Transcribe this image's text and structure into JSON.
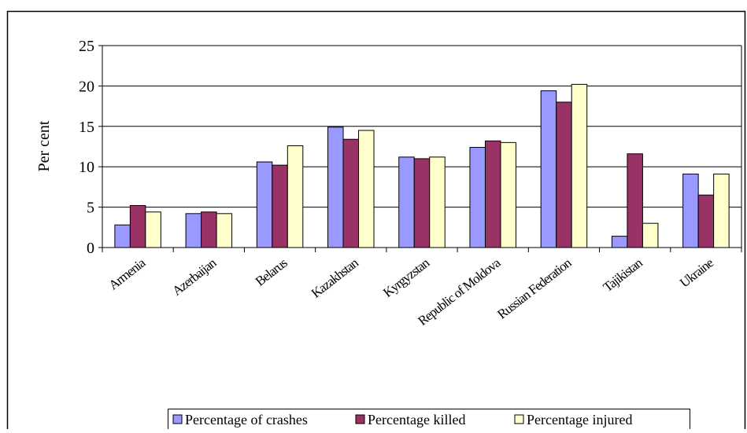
{
  "chart_data": {
    "type": "bar",
    "y_label": "Per cent",
    "categories": [
      "Armenia",
      "Azerbaijan",
      "Belarus",
      "Kazakhstan",
      "Kyrgyzstan",
      "Republic of Moldova",
      "Russian Federation",
      "Tajikistan",
      "Ukraine"
    ],
    "series": [
      {
        "name": "Percentage of crashes",
        "color": "#9999ff",
        "values": [
          2.8,
          4.2,
          10.6,
          14.9,
          11.2,
          12.4,
          19.4,
          1.4,
          9.1
        ]
      },
      {
        "name": "Percentage killed",
        "color": "#993366",
        "values": [
          5.2,
          4.4,
          10.2,
          13.4,
          11.0,
          13.2,
          18.0,
          11.6,
          6.5
        ]
      },
      {
        "name": "Percentage injured",
        "color": "#ffffcc",
        "values": [
          4.4,
          4.2,
          12.6,
          14.5,
          11.2,
          13.0,
          20.2,
          3.0,
          9.1
        ]
      }
    ],
    "ylim": [
      0,
      25
    ],
    "yticks": [
      0,
      5,
      10,
      15,
      20,
      25
    ],
    "grid": true,
    "legend": "bottom"
  }
}
